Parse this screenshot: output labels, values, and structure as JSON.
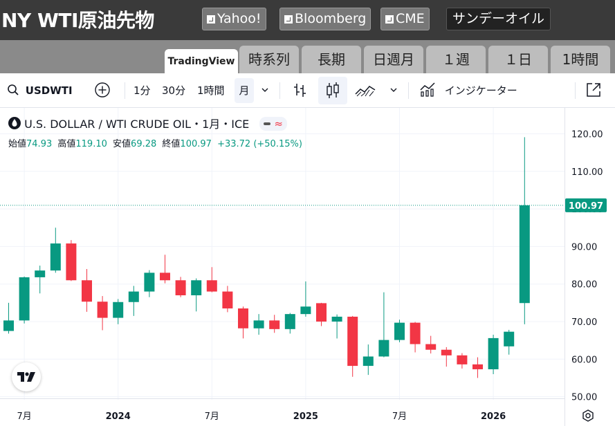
{
  "header": {
    "title": "NY WTI原油先物",
    "links": [
      {
        "label": "Yahoo!",
        "icon": "external-link-icon"
      },
      {
        "label": "Bloomberg",
        "icon": "external-link-icon"
      },
      {
        "label": "CME",
        "icon": "external-link-icon"
      }
    ],
    "sunday_oil": "サンデーオイル"
  },
  "tabs": [
    {
      "label": "TradingView",
      "active": true
    },
    {
      "label": "時系列"
    },
    {
      "label": "長期"
    },
    {
      "label": "日週月"
    },
    {
      "label": "１週"
    },
    {
      "label": "１日"
    },
    {
      "label": "1時間"
    }
  ],
  "toolbar": {
    "symbol": "USDWTI",
    "intervals": [
      "1分",
      "30分",
      "1時間",
      "月"
    ],
    "selected_interval": "月",
    "indicators_label": "インジケーター"
  },
  "legend": {
    "instrument": "U.S. DOLLAR / WTI CRUDE OIL・1月・ICE",
    "open_label": "始値",
    "open": "74.93",
    "high_label": "高値",
    "high": "119.10",
    "low_label": "安値",
    "low": "69.28",
    "close_label": "終値",
    "close": "100.97",
    "change": "+33.72",
    "change_pct": "(+50.15%)"
  },
  "chart_data": {
    "type": "candlestick",
    "colors": {
      "up": "#089981",
      "down": "#f23645"
    },
    "y_ticks": [
      "120.00",
      "110.00",
      "100.00",
      "90.00",
      "80.00",
      "70.00",
      "60.00",
      "50.00"
    ],
    "y_range": [
      48.5,
      124.5
    ],
    "x_tick_labels": [
      "7月",
      "2024",
      "7月",
      "2025",
      "7月",
      "2026"
    ],
    "last_price_label": "100.97",
    "candles": [
      {
        "o": 67.5,
        "h": 75.0,
        "l": 66.8,
        "c": 70.3
      },
      {
        "o": 70.3,
        "h": 82.0,
        "l": 69.5,
        "c": 81.8
      },
      {
        "o": 81.8,
        "h": 84.9,
        "l": 77.5,
        "c": 83.6
      },
      {
        "o": 83.6,
        "h": 95.0,
        "l": 83.0,
        "c": 90.8
      },
      {
        "o": 90.8,
        "h": 91.7,
        "l": 80.8,
        "c": 81.0
      },
      {
        "o": 81.0,
        "h": 84.0,
        "l": 72.6,
        "c": 75.3
      },
      {
        "o": 75.3,
        "h": 76.8,
        "l": 67.7,
        "c": 71.0
      },
      {
        "o": 71.0,
        "h": 76.0,
        "l": 69.3,
        "c": 75.2
      },
      {
        "o": 75.2,
        "h": 79.5,
        "l": 71.5,
        "c": 78.0
      },
      {
        "o": 78.0,
        "h": 83.7,
        "l": 76.5,
        "c": 83.0
      },
      {
        "o": 83.0,
        "h": 87.8,
        "l": 80.2,
        "c": 81.0
      },
      {
        "o": 81.0,
        "h": 81.9,
        "l": 76.5,
        "c": 77.0
      },
      {
        "o": 77.0,
        "h": 81.5,
        "l": 72.7,
        "c": 81.0
      },
      {
        "o": 81.0,
        "h": 84.5,
        "l": 77.8,
        "c": 78.0
      },
      {
        "o": 78.0,
        "h": 79.5,
        "l": 72.5,
        "c": 73.5
      },
      {
        "o": 73.5,
        "h": 74.0,
        "l": 65.5,
        "c": 68.2
      },
      {
        "o": 68.2,
        "h": 72.0,
        "l": 66.5,
        "c": 70.3
      },
      {
        "o": 70.3,
        "h": 71.8,
        "l": 67.0,
        "c": 68.0
      },
      {
        "o": 68.0,
        "h": 72.3,
        "l": 66.8,
        "c": 72.0
      },
      {
        "o": 72.0,
        "h": 80.7,
        "l": 71.3,
        "c": 74.0
      },
      {
        "o": 74.9,
        "h": 75.0,
        "l": 68.8,
        "c": 70.0
      },
      {
        "o": 70.0,
        "h": 71.9,
        "l": 65.5,
        "c": 71.3
      },
      {
        "o": 71.3,
        "h": 71.5,
        "l": 55.3,
        "c": 58.2
      },
      {
        "o": 58.2,
        "h": 63.9,
        "l": 55.8,
        "c": 60.7
      },
      {
        "o": 60.7,
        "h": 77.8,
        "l": 60.5,
        "c": 65.1
      },
      {
        "o": 65.1,
        "h": 70.5,
        "l": 64.5,
        "c": 69.7
      },
      {
        "o": 69.7,
        "h": 69.9,
        "l": 61.8,
        "c": 64.0
      },
      {
        "o": 64.0,
        "h": 66.2,
        "l": 61.5,
        "c": 62.5
      },
      {
        "o": 62.5,
        "h": 63.2,
        "l": 58.0,
        "c": 61.0
      },
      {
        "o": 61.0,
        "h": 61.6,
        "l": 57.5,
        "c": 58.6
      },
      {
        "o": 58.6,
        "h": 60.5,
        "l": 55.0,
        "c": 57.3
      },
      {
        "o": 57.3,
        "h": 66.5,
        "l": 56.0,
        "c": 65.6
      },
      {
        "o": 63.4,
        "h": 67.8,
        "l": 61.2,
        "c": 67.3
      },
      {
        "o": 74.93,
        "h": 119.1,
        "l": 69.28,
        "c": 100.97
      }
    ]
  }
}
